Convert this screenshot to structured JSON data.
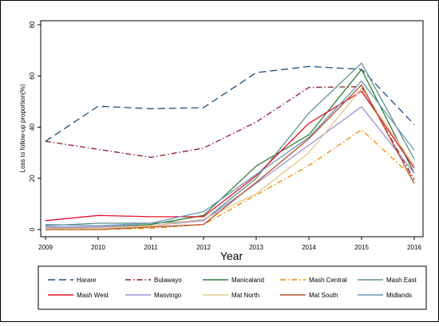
{
  "chart_data": {
    "type": "line",
    "xlabel": "Year",
    "ylabel": "Loss to follow-up proportion(%)",
    "x": [
      2009,
      2010,
      2011,
      2012,
      2013,
      2014,
      2015,
      2016
    ],
    "x_ticks": [
      "2009",
      "2010",
      "2011",
      "2012",
      "2013",
      "2014",
      "2015",
      "2016"
    ],
    "y_ticks": [
      "0",
      "20",
      "40",
      "60",
      "80"
    ],
    "ylim": [
      0,
      80
    ],
    "legend_placement": "bottom",
    "series": [
      {
        "name": "Harare",
        "color": "#1a4e80",
        "dash": "long-dash",
        "values": [
          34.5,
          48.2,
          47.2,
          47.6,
          61.3,
          63.7,
          62.6,
          41.0
        ]
      },
      {
        "name": "Bulawayo",
        "color": "#8c1a25",
        "dash": "dash-dot",
        "values": [
          34.5,
          31.3,
          28.2,
          31.8,
          42.0,
          55.5,
          55.8,
          19.5
        ]
      },
      {
        "name": "Manicaland",
        "color": "#2e7d32",
        "dash": "solid",
        "values": [
          0.5,
          1.0,
          2.0,
          5.5,
          24.8,
          37.0,
          62.5,
          22.0
        ]
      },
      {
        "name": "Mash Central",
        "color": "#f08c00",
        "dash": "dash-dot",
        "values": [
          0.0,
          0.0,
          0.5,
          2.0,
          13.5,
          25.0,
          39.0,
          20.0
        ]
      },
      {
        "name": "Mash East",
        "color": "#5f8f8f",
        "dash": "solid",
        "values": [
          1.5,
          2.5,
          2.5,
          3.5,
          20.0,
          45.5,
          65.0,
          27.5
        ]
      },
      {
        "name": "Mash West",
        "color": "#e3122a",
        "dash": "solid",
        "values": [
          3.5,
          5.5,
          5.0,
          5.0,
          21.0,
          41.5,
          54.0,
          24.0
        ]
      },
      {
        "name": "Masvingo",
        "color": "#9f90d8",
        "dash": "solid",
        "values": [
          1.0,
          1.0,
          1.5,
          3.5,
          18.0,
          33.0,
          48.0,
          22.0
        ]
      },
      {
        "name": "Mat North",
        "color": "#e6c88a",
        "dash": "solid",
        "values": [
          0.5,
          0.5,
          1.5,
          4.0,
          14.0,
          30.0,
          55.0,
          25.0
        ]
      },
      {
        "name": "Mat South",
        "color": "#b5522a",
        "dash": "solid",
        "values": [
          0.0,
          0.0,
          1.0,
          2.0,
          18.5,
          35.5,
          56.5,
          18.0
        ]
      },
      {
        "name": "Midlands",
        "color": "#6d95b8",
        "dash": "solid",
        "values": [
          2.0,
          1.5,
          2.5,
          7.0,
          21.5,
          36.0,
          58.0,
          31.0
        ]
      }
    ]
  }
}
